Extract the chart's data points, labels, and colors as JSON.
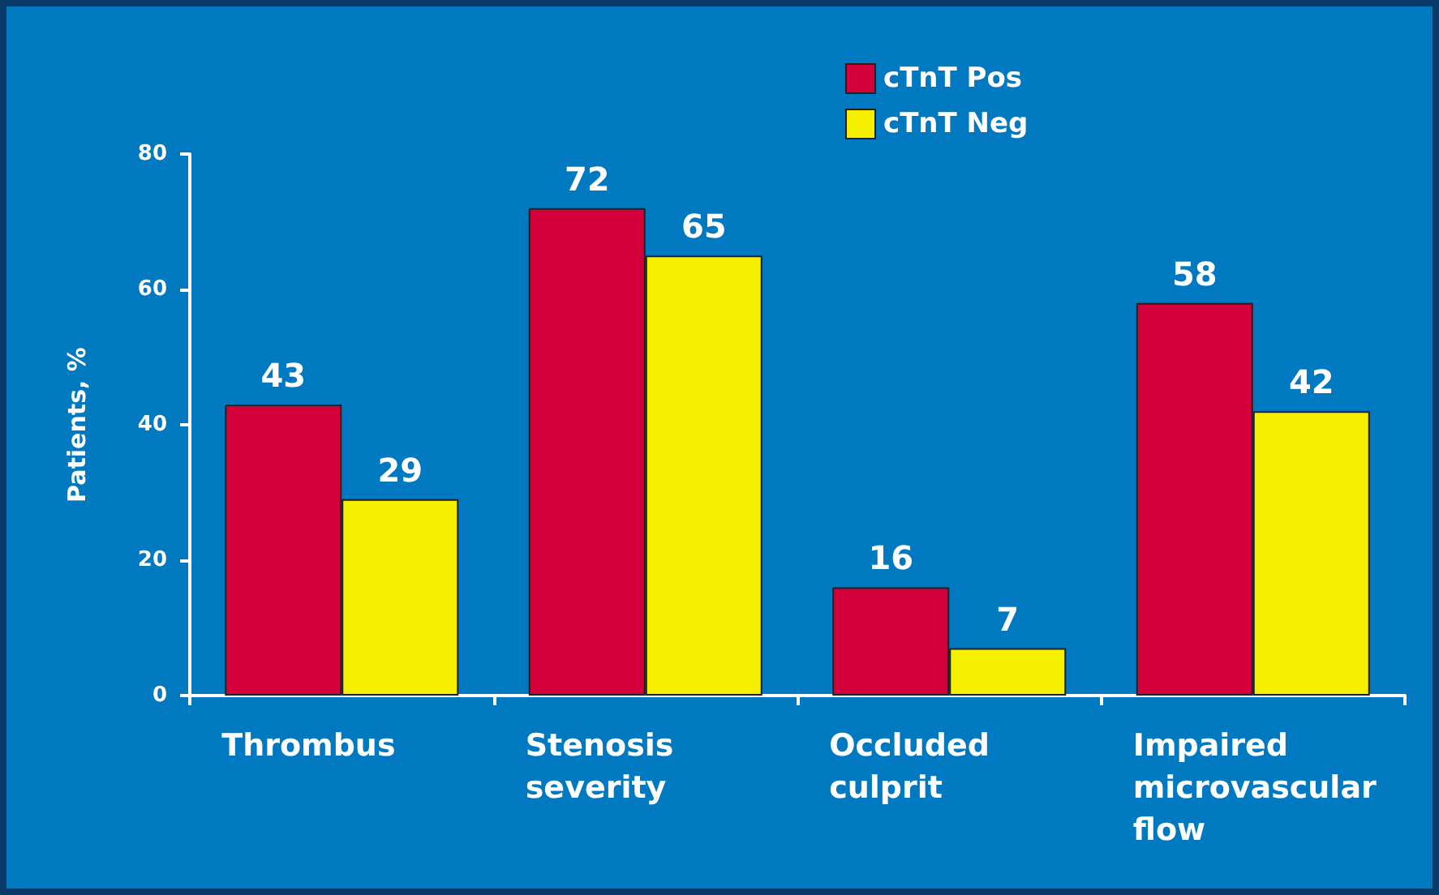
{
  "chart_data": {
    "type": "bar",
    "ylabel": "Patients, %",
    "categories": [
      "Thrombus",
      "Stenosis severity",
      "Occluded culprit",
      "Impaired microvascular flow"
    ],
    "series": [
      {
        "name": "cTnT Pos",
        "color": "#d4003b",
        "values": [
          43,
          72,
          16,
          58
        ]
      },
      {
        "name": "cTnT Neg",
        "color": "#f5f000",
        "values": [
          29,
          65,
          7,
          42
        ]
      }
    ],
    "ylim": [
      0,
      80
    ],
    "yticks": [
      0,
      20,
      40,
      60,
      80
    ],
    "grid": false,
    "legend": "top",
    "data_labels": true
  }
}
